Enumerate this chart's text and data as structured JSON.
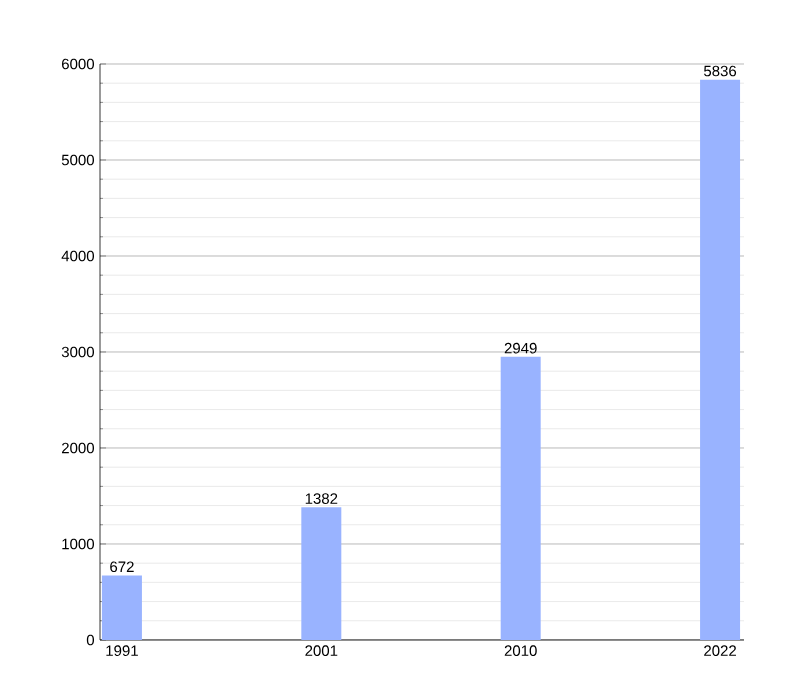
{
  "chart_data": {
    "type": "bar",
    "categories": [
      "1991",
      "2001",
      "2010",
      "2022"
    ],
    "values": [
      672,
      1382,
      2949,
      5836
    ],
    "color": "#99b3ff",
    "ylim": [
      0,
      6000
    ],
    "yticks": [
      0,
      1000,
      2000,
      3000,
      4000,
      5000,
      6000
    ],
    "grid": "y",
    "data_labels": true
  }
}
